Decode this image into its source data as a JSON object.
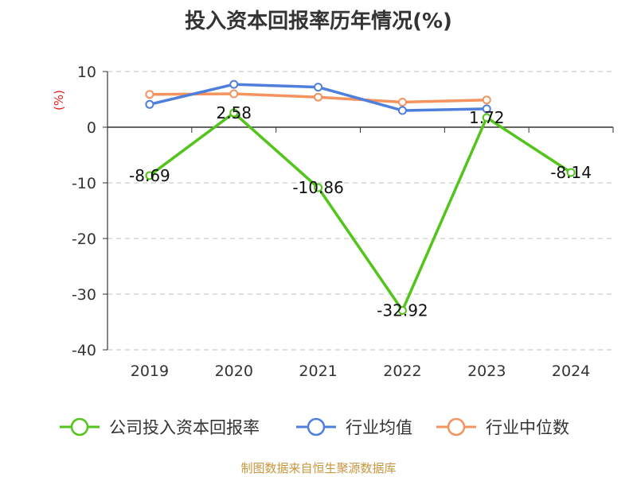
{
  "chart_data": {
    "type": "line",
    "title": "投入资本回报率历年情况(%)",
    "ylabel": "(%)",
    "categories": [
      "2019",
      "2020",
      "2021",
      "2022",
      "2023",
      "2024"
    ],
    "ylim": [
      -40,
      10
    ],
    "yticks": [
      "10",
      "0",
      "-10",
      "-20",
      "-30",
      "-40"
    ],
    "grid": true,
    "legend_position": "bottom",
    "series": [
      {
        "name": "公司投入资本回报率",
        "color": "#52c41a",
        "values": [
          -8.69,
          2.58,
          -10.86,
          -32.92,
          1.72,
          -8.14
        ],
        "labels": [
          "-8.69",
          "2.58",
          "-10.86",
          "-32.92",
          "1.72",
          "-8.14"
        ]
      },
      {
        "name": "行业均值",
        "color": "#4e7fdc",
        "values": [
          4.1,
          7.7,
          7.2,
          3.0,
          3.3,
          null
        ]
      },
      {
        "name": "行业中位数",
        "color": "#f4935e",
        "values": [
          5.9,
          6.0,
          5.4,
          4.5,
          4.9,
          null
        ]
      }
    ]
  },
  "source": "制图数据来自恒生聚源数据库",
  "colors": {
    "unit_label": "#e02020",
    "source_text": "#c8963e",
    "grid": "#cccccc",
    "axis": "#333333"
  }
}
